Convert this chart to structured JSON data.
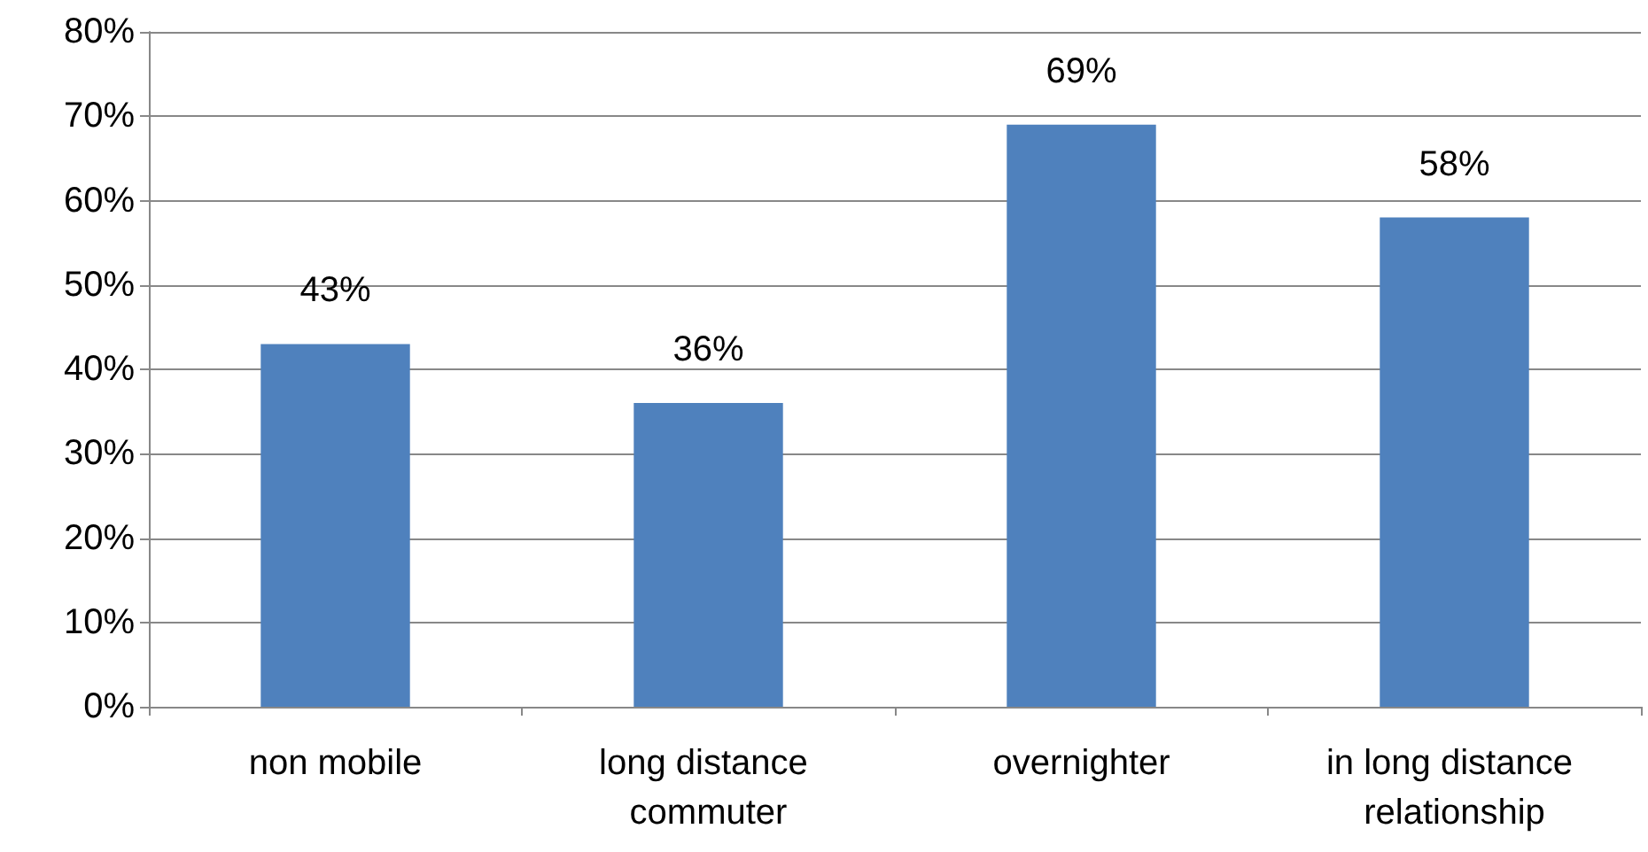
{
  "chart_data": {
    "type": "bar",
    "categories": [
      "non mobile",
      "long distance commuter",
      "overnighter",
      "in long distance relationship"
    ],
    "values": [
      43,
      36,
      69,
      58
    ],
    "color": "#4f81bd",
    "value_labels": [
      "43%",
      "36%",
      "69%",
      "58%"
    ],
    "ylim": [
      0,
      80
    ],
    "yticks": [
      {
        "value": 0,
        "label": "0%"
      },
      {
        "value": 10,
        "label": "10%"
      },
      {
        "value": 20,
        "label": "20%"
      },
      {
        "value": 30,
        "label": "30%"
      },
      {
        "value": 40,
        "label": "40%"
      },
      {
        "value": 50,
        "label": "50%"
      },
      {
        "value": 60,
        "label": "60%"
      },
      {
        "value": 70,
        "label": "70%"
      },
      {
        "value": 80,
        "label": "80%"
      }
    ],
    "grid": "y"
  }
}
